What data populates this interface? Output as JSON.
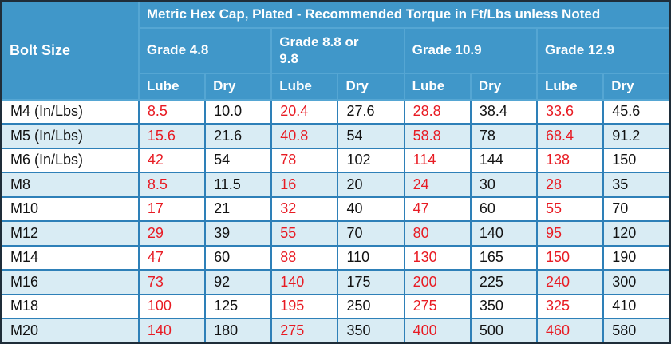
{
  "table": {
    "title": "Metric Hex Cap, Plated - Recommended Torque in Ft/Lbs unless Noted",
    "bolt_size_header": "Bolt Size",
    "grades": [
      "Grade 4.8",
      "Grade 8.8 or 9.8",
      "Grade 10.9",
      "Grade 12.9"
    ],
    "sub_headers": [
      "Lube",
      "Dry"
    ],
    "rows": [
      {
        "bolt": "M4 (In/Lbs)",
        "values": [
          "8.5",
          "10.0",
          "20.4",
          "27.6",
          "28.8",
          "38.4",
          "33.6",
          "45.6"
        ]
      },
      {
        "bolt": "M5 (In/Lbs)",
        "values": [
          "15.6",
          "21.6",
          "40.8",
          "54",
          "58.8",
          "78",
          "68.4",
          "91.2"
        ]
      },
      {
        "bolt": "M6 (In/Lbs)",
        "values": [
          "42",
          "54",
          "78",
          "102",
          "114",
          "144",
          "138",
          "150"
        ]
      },
      {
        "bolt": "M8",
        "values": [
          "8.5",
          "11.5",
          "16",
          "20",
          "24",
          "30",
          "28",
          "35"
        ]
      },
      {
        "bolt": "M10",
        "values": [
          "17",
          "21",
          "32",
          "40",
          "47",
          "60",
          "55",
          "70"
        ]
      },
      {
        "bolt": "M12",
        "values": [
          "29",
          "39",
          "55",
          "70",
          "80",
          "140",
          "95",
          "120"
        ]
      },
      {
        "bolt": "M14",
        "values": [
          "47",
          "60",
          "88",
          "110",
          "130",
          "165",
          "150",
          "190"
        ]
      },
      {
        "bolt": "M16",
        "values": [
          "73",
          "92",
          "140",
          "175",
          "200",
          "225",
          "240",
          "300"
        ]
      },
      {
        "bolt": "M18",
        "values": [
          "100",
          "125",
          "195",
          "250",
          "275",
          "350",
          "325",
          "410"
        ]
      },
      {
        "bolt": "M20",
        "values": [
          "140",
          "180",
          "275",
          "350",
          "400",
          "500",
          "460",
          "580"
        ]
      }
    ],
    "colors": {
      "header_bg": "#4097c9",
      "header_text": "#ffffff",
      "header_grid": "#55a6d3",
      "data_grid": "#2e80b8",
      "stripe_bg": "#d9ecf4",
      "row_bg": "#ffffff",
      "outer_border": "#1f2d39",
      "lube_value_text": "#e81b23",
      "dry_value_text": "#121212"
    }
  }
}
